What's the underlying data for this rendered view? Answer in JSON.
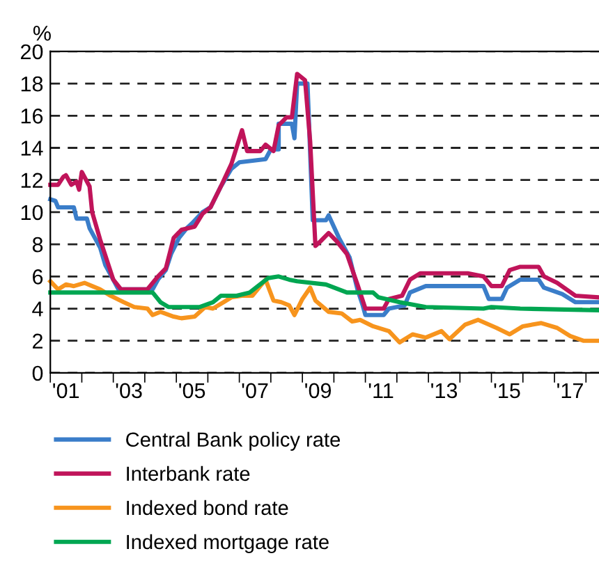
{
  "chart_data": {
    "type": "line",
    "ylabel": "%",
    "legend": "bottom",
    "grid": "y",
    "line_style": "solid",
    "xlim": [
      "2001-01",
      "2018-06"
    ],
    "ylim": [
      0,
      20
    ],
    "yticks": [
      0,
      2,
      4,
      6,
      8,
      10,
      12,
      14,
      16,
      18,
      20
    ],
    "xticks": [
      {
        "value": "2001-07",
        "label": "'01"
      },
      {
        "value": "2003-07",
        "label": "'03"
      },
      {
        "value": "2005-07",
        "label": "'05"
      },
      {
        "value": "2007-07",
        "label": "'07"
      },
      {
        "value": "2009-07",
        "label": "'09"
      },
      {
        "value": "2011-07",
        "label": "'11"
      },
      {
        "value": "2013-07",
        "label": "'13"
      },
      {
        "value": "2015-07",
        "label": "'15"
      },
      {
        "value": "2017-07",
        "label": "'17"
      },
      {
        "value": "2001",
        "label": null
      },
      {
        "value": "2002",
        "label": null
      },
      {
        "value": "2003",
        "label": null
      },
      {
        "value": "2004",
        "label": null
      },
      {
        "value": "2005",
        "label": null
      },
      {
        "value": "2006",
        "label": null
      },
      {
        "value": "2007",
        "label": null
      },
      {
        "value": "2008",
        "label": null
      },
      {
        "value": "2009",
        "label": null
      },
      {
        "value": "2010",
        "label": null
      },
      {
        "value": "2011",
        "label": null
      },
      {
        "value": "2012",
        "label": null
      },
      {
        "value": "2013",
        "label": null
      },
      {
        "value": "2014",
        "label": null
      },
      {
        "value": "2015",
        "label": null
      },
      {
        "value": "2016",
        "label": null
      },
      {
        "value": "2017",
        "label": null
      },
      {
        "value": "2018",
        "label": null
      }
    ],
    "series": [
      {
        "name": "Central Bank policy rate",
        "color": "#3a7dc9",
        "x": [
          "2001-01",
          "2001-03",
          "2001-04",
          "2001-10",
          "2001-11",
          "2002-03",
          "2002-04",
          "2002-06",
          "2002-08",
          "2002-10",
          "2003-01",
          "2003-03",
          "2004-04",
          "2004-06",
          "2004-09",
          "2004-11",
          "2005-02",
          "2005-05",
          "2005-07",
          "2005-11",
          "2006-02",
          "2006-06",
          "2006-10",
          "2007-01",
          "2007-11",
          "2008-01",
          "2008-04",
          "2008-04",
          "2008-09",
          "2008-10",
          "2008-11",
          "2009-03",
          "2009-05",
          "2009-10",
          "2009-11",
          "2010-03",
          "2010-07",
          "2010-10",
          "2010-12",
          "2011-01",
          "2011-08",
          "2011-10",
          "2012-04",
          "2012-06",
          "2012-12",
          "2014-10",
          "2014-12",
          "2015-05",
          "2015-07",
          "2015-12",
          "2016-07",
          "2016-09",
          "2017-04",
          "2017-09",
          "2018-06"
        ],
        "values": [
          10.8,
          10.7,
          10.3,
          10.3,
          9.6,
          9.6,
          9.0,
          8.4,
          7.8,
          6.7,
          5.8,
          5.2,
          5.2,
          5.8,
          6.4,
          7.4,
          8.4,
          9.0,
          9.3,
          10.0,
          10.3,
          11.6,
          12.7,
          13.1,
          13.3,
          13.9,
          13.9,
          15.5,
          15.5,
          14.6,
          18.0,
          18.0,
          9.5,
          9.5,
          9.8,
          8.4,
          7.2,
          5.2,
          4.2,
          3.6,
          3.6,
          4.0,
          4.2,
          5.0,
          5.4,
          5.4,
          4.6,
          4.6,
          5.3,
          5.8,
          5.8,
          5.3,
          4.9,
          4.4,
          4.4
        ]
      },
      {
        "name": "Interbank rate",
        "color": "#c0145a",
        "x": [
          "2001-01",
          "2001-04",
          "2001-06",
          "2001-07",
          "2001-09",
          "2001-11",
          "2001-12",
          "2002-01",
          "2002-04",
          "2002-05",
          "2002-08",
          "2002-11",
          "2003-01",
          "2003-04",
          "2004-02",
          "2004-06",
          "2004-09",
          "2004-12",
          "2005-03",
          "2005-08",
          "2005-11",
          "2006-02",
          "2006-06",
          "2006-10",
          "2007-02",
          "2007-04",
          "2007-09",
          "2007-11",
          "2008-02",
          "2008-04",
          "2008-07",
          "2008-09",
          "2008-11",
          "2009-02",
          "2009-04",
          "2009-06",
          "2009-08",
          "2009-11",
          "2010-02",
          "2010-06",
          "2010-10",
          "2011-01",
          "2011-08",
          "2011-10",
          "2012-03",
          "2012-06",
          "2012-10",
          "2014-04",
          "2014-10",
          "2015-01",
          "2015-05",
          "2015-08",
          "2015-12",
          "2016-07",
          "2016-09",
          "2017-02",
          "2017-09",
          "2018-06"
        ],
        "values": [
          11.7,
          11.7,
          12.2,
          12.3,
          11.7,
          11.9,
          11.4,
          12.5,
          11.6,
          10.0,
          8.3,
          6.8,
          5.8,
          5.2,
          5.2,
          6.0,
          6.5,
          8.4,
          8.9,
          9.1,
          9.9,
          10.3,
          11.6,
          13.0,
          15.1,
          13.8,
          13.8,
          14.2,
          13.8,
          15.4,
          15.9,
          15.9,
          18.6,
          18.2,
          14.4,
          7.9,
          8.2,
          8.7,
          8.2,
          7.4,
          5.5,
          4.0,
          4.0,
          4.6,
          4.8,
          5.8,
          6.2,
          6.2,
          6.0,
          5.4,
          5.4,
          6.4,
          6.6,
          6.6,
          6.0,
          5.6,
          4.8,
          4.7
        ]
      },
      {
        "name": "Indexed bond rate",
        "color": "#f7941d",
        "x": [
          "2001-01",
          "2001-04",
          "2001-07",
          "2001-10",
          "2002-02",
          "2002-05",
          "2002-08",
          "2002-12",
          "2003-05",
          "2003-09",
          "2004-02",
          "2004-04",
          "2004-07",
          "2004-12",
          "2005-03",
          "2005-08",
          "2005-12",
          "2006-03",
          "2006-07",
          "2006-10",
          "2007-02",
          "2007-06",
          "2007-09",
          "2007-11",
          "2008-02",
          "2008-05",
          "2008-08",
          "2008-10",
          "2009-01",
          "2009-04",
          "2009-06",
          "2009-11",
          "2010-04",
          "2010-08",
          "2010-11",
          "2011-04",
          "2011-10",
          "2012-02",
          "2012-07",
          "2012-12",
          "2013-06",
          "2013-09",
          "2014-03",
          "2014-08",
          "2015-03",
          "2015-08",
          "2016-01",
          "2016-08",
          "2017-02",
          "2017-07",
          "2017-12",
          "2018-06"
        ],
        "values": [
          5.7,
          5.2,
          5.5,
          5.4,
          5.6,
          5.4,
          5.2,
          4.8,
          4.4,
          4.1,
          4.0,
          3.6,
          3.8,
          3.5,
          3.4,
          3.5,
          4.1,
          4.0,
          4.4,
          4.7,
          4.8,
          4.8,
          5.4,
          5.8,
          4.5,
          4.4,
          4.2,
          3.6,
          4.6,
          5.3,
          4.5,
          3.8,
          3.7,
          3.2,
          3.3,
          2.9,
          2.6,
          1.9,
          2.4,
          2.2,
          2.6,
          2.1,
          3.0,
          3.3,
          2.8,
          2.4,
          2.9,
          3.1,
          2.8,
          2.3,
          2.0,
          2.0
        ]
      },
      {
        "name": "Indexed mortgage rate",
        "color": "#00a651",
        "x": [
          "2001-01",
          "2004-04",
          "2004-07",
          "2004-10",
          "2005-10",
          "2006-03",
          "2006-06",
          "2006-12",
          "2007-05",
          "2007-12",
          "2008-04",
          "2008-08",
          "2008-11",
          "2009-10",
          "2010-06",
          "2011-04",
          "2011-06",
          "2012-02",
          "2012-12",
          "2014-10",
          "2015-01",
          "2015-12",
          "2018-06"
        ],
        "values": [
          5.0,
          5.0,
          4.4,
          4.1,
          4.1,
          4.4,
          4.8,
          4.8,
          5.0,
          5.9,
          6.0,
          5.8,
          5.7,
          5.5,
          5.0,
          5.0,
          4.7,
          4.4,
          4.1,
          4.0,
          4.1,
          4.0,
          3.9
        ]
      }
    ]
  }
}
